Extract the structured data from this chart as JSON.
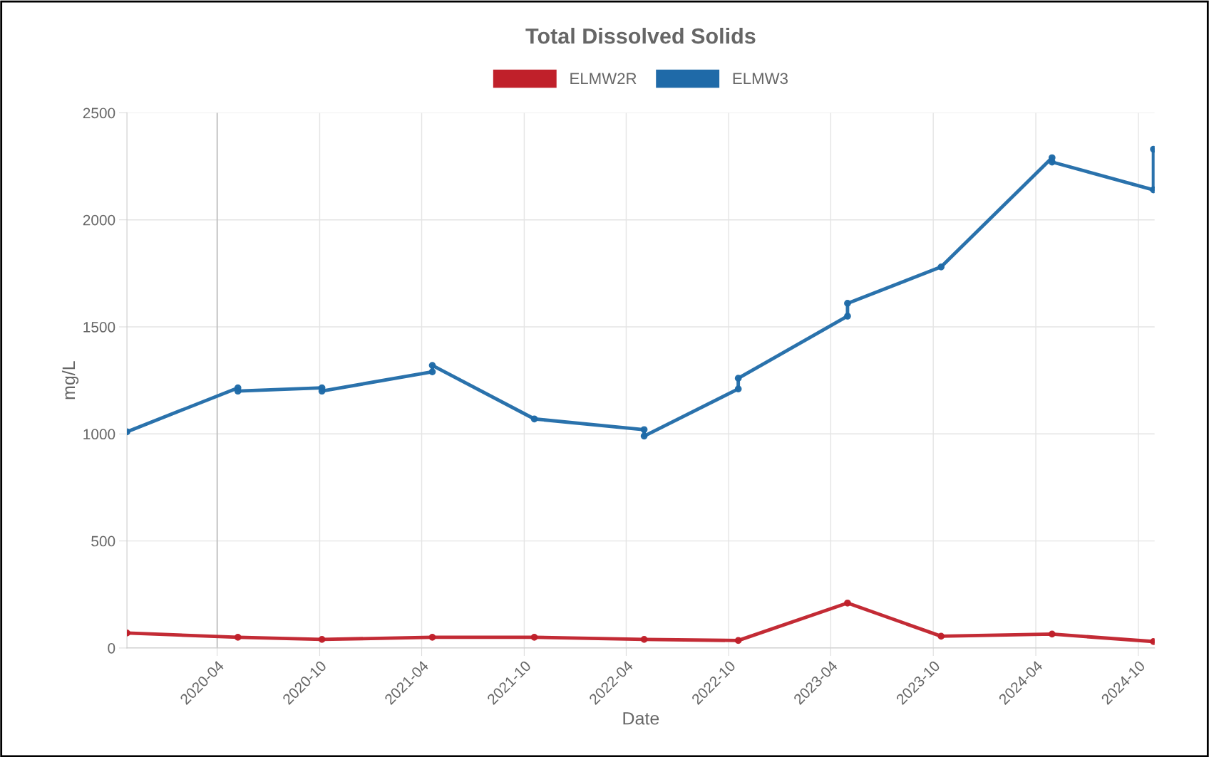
{
  "chart_data": {
    "type": "line",
    "title": "Total Dissolved Solids",
    "xlabel": "Date",
    "ylabel": "mg/L",
    "xlim": [
      "2019-10-23",
      "2024-10-30"
    ],
    "xticks": [
      {
        "value": "2020-04-01",
        "label": "2020-04"
      },
      {
        "value": "2020-10-01",
        "label": "2020-10"
      },
      {
        "value": "2021-04-01",
        "label": "2021-04"
      },
      {
        "value": "2021-10-01",
        "label": "2021-10"
      },
      {
        "value": "2022-04-01",
        "label": "2022-04"
      },
      {
        "value": "2022-10-01",
        "label": "2022-10"
      },
      {
        "value": "2023-04-01",
        "label": "2023-04"
      },
      {
        "value": "2023-10-01",
        "label": "2023-10"
      },
      {
        "value": "2024-04-01",
        "label": "2024-04"
      },
      {
        "value": "2024-10-01",
        "label": "2024-10"
      }
    ],
    "ylim": [
      0,
      2500
    ],
    "yticks": [
      0,
      500,
      1000,
      1500,
      2000,
      2500
    ],
    "grid": true,
    "legend": "top",
    "marker": "circle",
    "line_style": "solid",
    "ref_lines": [
      {
        "axis": "x",
        "value": "2020-04-01",
        "color": "#bbbbbb"
      }
    ],
    "series": [
      {
        "name": "ELMW2R",
        "color": "#c0202a",
        "x": [
          "2019-10-23",
          "2020-05-08",
          "2020-10-05",
          "2021-04-20",
          "2021-10-19",
          "2022-05-03",
          "2022-10-18",
          "2023-05-01",
          "2023-10-15",
          "2024-04-30",
          "2024-10-28"
        ],
        "values": [
          70,
          50,
          40,
          50,
          50,
          40,
          35,
          210,
          55,
          65,
          30
        ]
      },
      {
        "name": "ELMW3",
        "color": "#1f6aa8",
        "x": [
          "2019-10-23",
          "2020-05-08",
          "2020-05-08",
          "2020-10-05",
          "2020-10-05",
          "2021-04-20",
          "2021-04-20",
          "2021-10-19",
          "2022-05-03",
          "2022-05-03",
          "2022-10-18",
          "2022-10-18",
          "2023-05-01",
          "2023-05-01",
          "2023-10-15",
          "2024-04-30",
          "2024-04-30",
          "2024-10-28",
          "2024-10-28"
        ],
        "values": [
          1010,
          1215,
          1200,
          1215,
          1200,
          1290,
          1320,
          1070,
          1020,
          990,
          1210,
          1260,
          1550,
          1610,
          1780,
          2290,
          2270,
          2140,
          2330
        ]
      }
    ]
  }
}
